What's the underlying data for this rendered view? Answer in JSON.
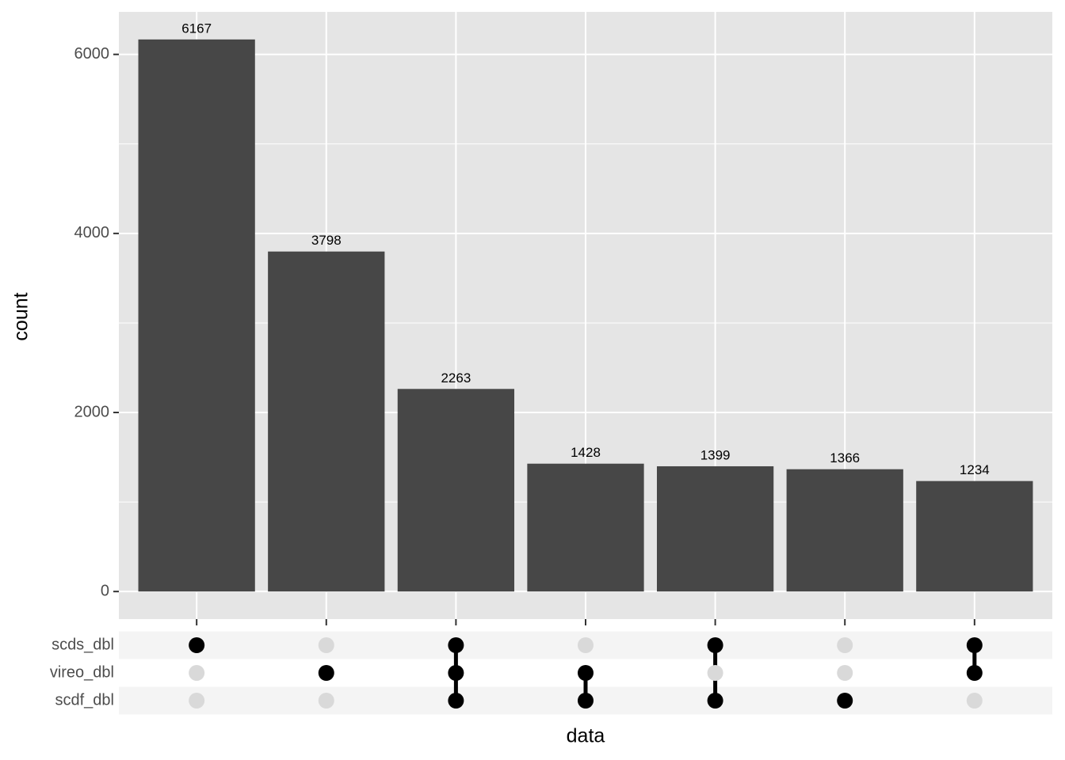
{
  "chart_data": {
    "type": "upset",
    "y_label": "count",
    "x_label": "data",
    "values": [
      6167,
      3798,
      2263,
      1428,
      1399,
      1366,
      1234
    ],
    "sets": [
      "scds_dbl",
      "vireo_dbl",
      "scdf_dbl"
    ],
    "memberships": [
      [
        true,
        false,
        false
      ],
      [
        false,
        true,
        false
      ],
      [
        true,
        true,
        true
      ],
      [
        false,
        true,
        true
      ],
      [
        true,
        false,
        true
      ],
      [
        false,
        false,
        true
      ],
      [
        true,
        true,
        false
      ]
    ],
    "color": "#474747",
    "ylim": [
      -308,
      6475
    ],
    "yticks": [
      0,
      2000,
      4000,
      6000
    ],
    "minor_yticks": [
      1000,
      3000,
      5000
    ],
    "grid": true
  }
}
